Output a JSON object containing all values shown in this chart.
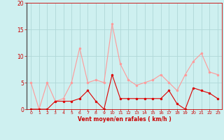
{
  "x": [
    0,
    1,
    2,
    3,
    4,
    5,
    6,
    7,
    8,
    9,
    10,
    11,
    12,
    13,
    14,
    15,
    16,
    17,
    18,
    19,
    20,
    21,
    22,
    23
  ],
  "wind_avg": [
    5.0,
    0.0,
    5.0,
    1.5,
    2.0,
    5.0,
    11.5,
    5.0,
    5.5,
    5.0,
    16.0,
    8.5,
    5.5,
    4.5,
    5.0,
    5.5,
    6.5,
    5.0,
    3.5,
    6.5,
    9.0,
    10.5,
    7.0,
    6.5
  ],
  "wind_gust": [
    0.0,
    0.0,
    0.0,
    1.5,
    1.5,
    1.5,
    2.0,
    3.5,
    1.5,
    0.0,
    6.5,
    2.0,
    2.0,
    2.0,
    2.0,
    2.0,
    2.0,
    3.5,
    1.0,
    0.0,
    4.0,
    3.5,
    3.0,
    2.0
  ],
  "ylim": [
    0,
    20
  ],
  "xlim_min": -0.5,
  "xlim_max": 23.5,
  "yticks": [
    0,
    5,
    10,
    15,
    20
  ],
  "xticks": [
    0,
    1,
    2,
    3,
    4,
    5,
    6,
    7,
    8,
    9,
    10,
    11,
    12,
    13,
    14,
    15,
    16,
    17,
    18,
    19,
    20,
    21,
    22,
    23
  ],
  "xlabel": "Vent moyen/en rafales ( km/h )",
  "bg_color": "#cef0f0",
  "line_color_avg": "#ff9999",
  "line_color_gust": "#dd0000",
  "grid_color": "#b0d8d8",
  "axis_color": "#cc0000",
  "label_color": "#cc0000",
  "tick_color": "#cc0000",
  "marker": "o",
  "linewidth": 0.8,
  "markersize": 2.0
}
